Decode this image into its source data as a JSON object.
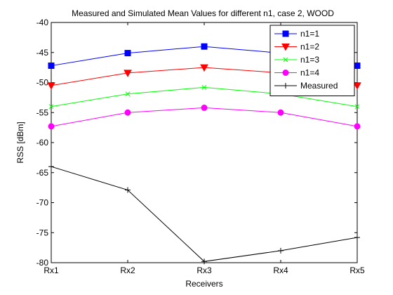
{
  "chart_data": {
    "type": "line",
    "title": "Measured and Simulated Mean Values for different n1, case 2, WOOD",
    "xlabel": "Receivers",
    "ylabel": "RSS [dBm]",
    "categories": [
      "Rx1",
      "Rx2",
      "Rx3",
      "Rx4",
      "Rx5"
    ],
    "ylim": [
      -80,
      -40
    ],
    "yticks": [
      -80,
      -75,
      -70,
      -65,
      -60,
      -55,
      -50,
      -45,
      -40
    ],
    "grid": false,
    "legend_position": "top-right",
    "series": [
      {
        "name": "n1=1",
        "color": "#0000ff",
        "marker": "square",
        "values": [
          -47.2,
          -45.1,
          -44.0,
          -45.1,
          -47.2
        ]
      },
      {
        "name": "n1=2",
        "color": "#ff0000",
        "marker": "triangle-down",
        "values": [
          -50.5,
          -48.4,
          -47.5,
          -48.4,
          -50.5
        ]
      },
      {
        "name": "n1=3",
        "color": "#00ff00",
        "marker": "x",
        "values": [
          -54.0,
          -51.9,
          -50.8,
          -51.9,
          -54.0
        ]
      },
      {
        "name": "n1=4",
        "color": "#ff00ff",
        "marker": "circle",
        "values": [
          -57.3,
          -55.0,
          -54.2,
          -55.0,
          -57.3
        ]
      },
      {
        "name": "Measured",
        "color": "#000000",
        "marker": "plus",
        "values": [
          -64.0,
          -67.9,
          -79.8,
          -78.0,
          -75.8
        ]
      }
    ]
  }
}
